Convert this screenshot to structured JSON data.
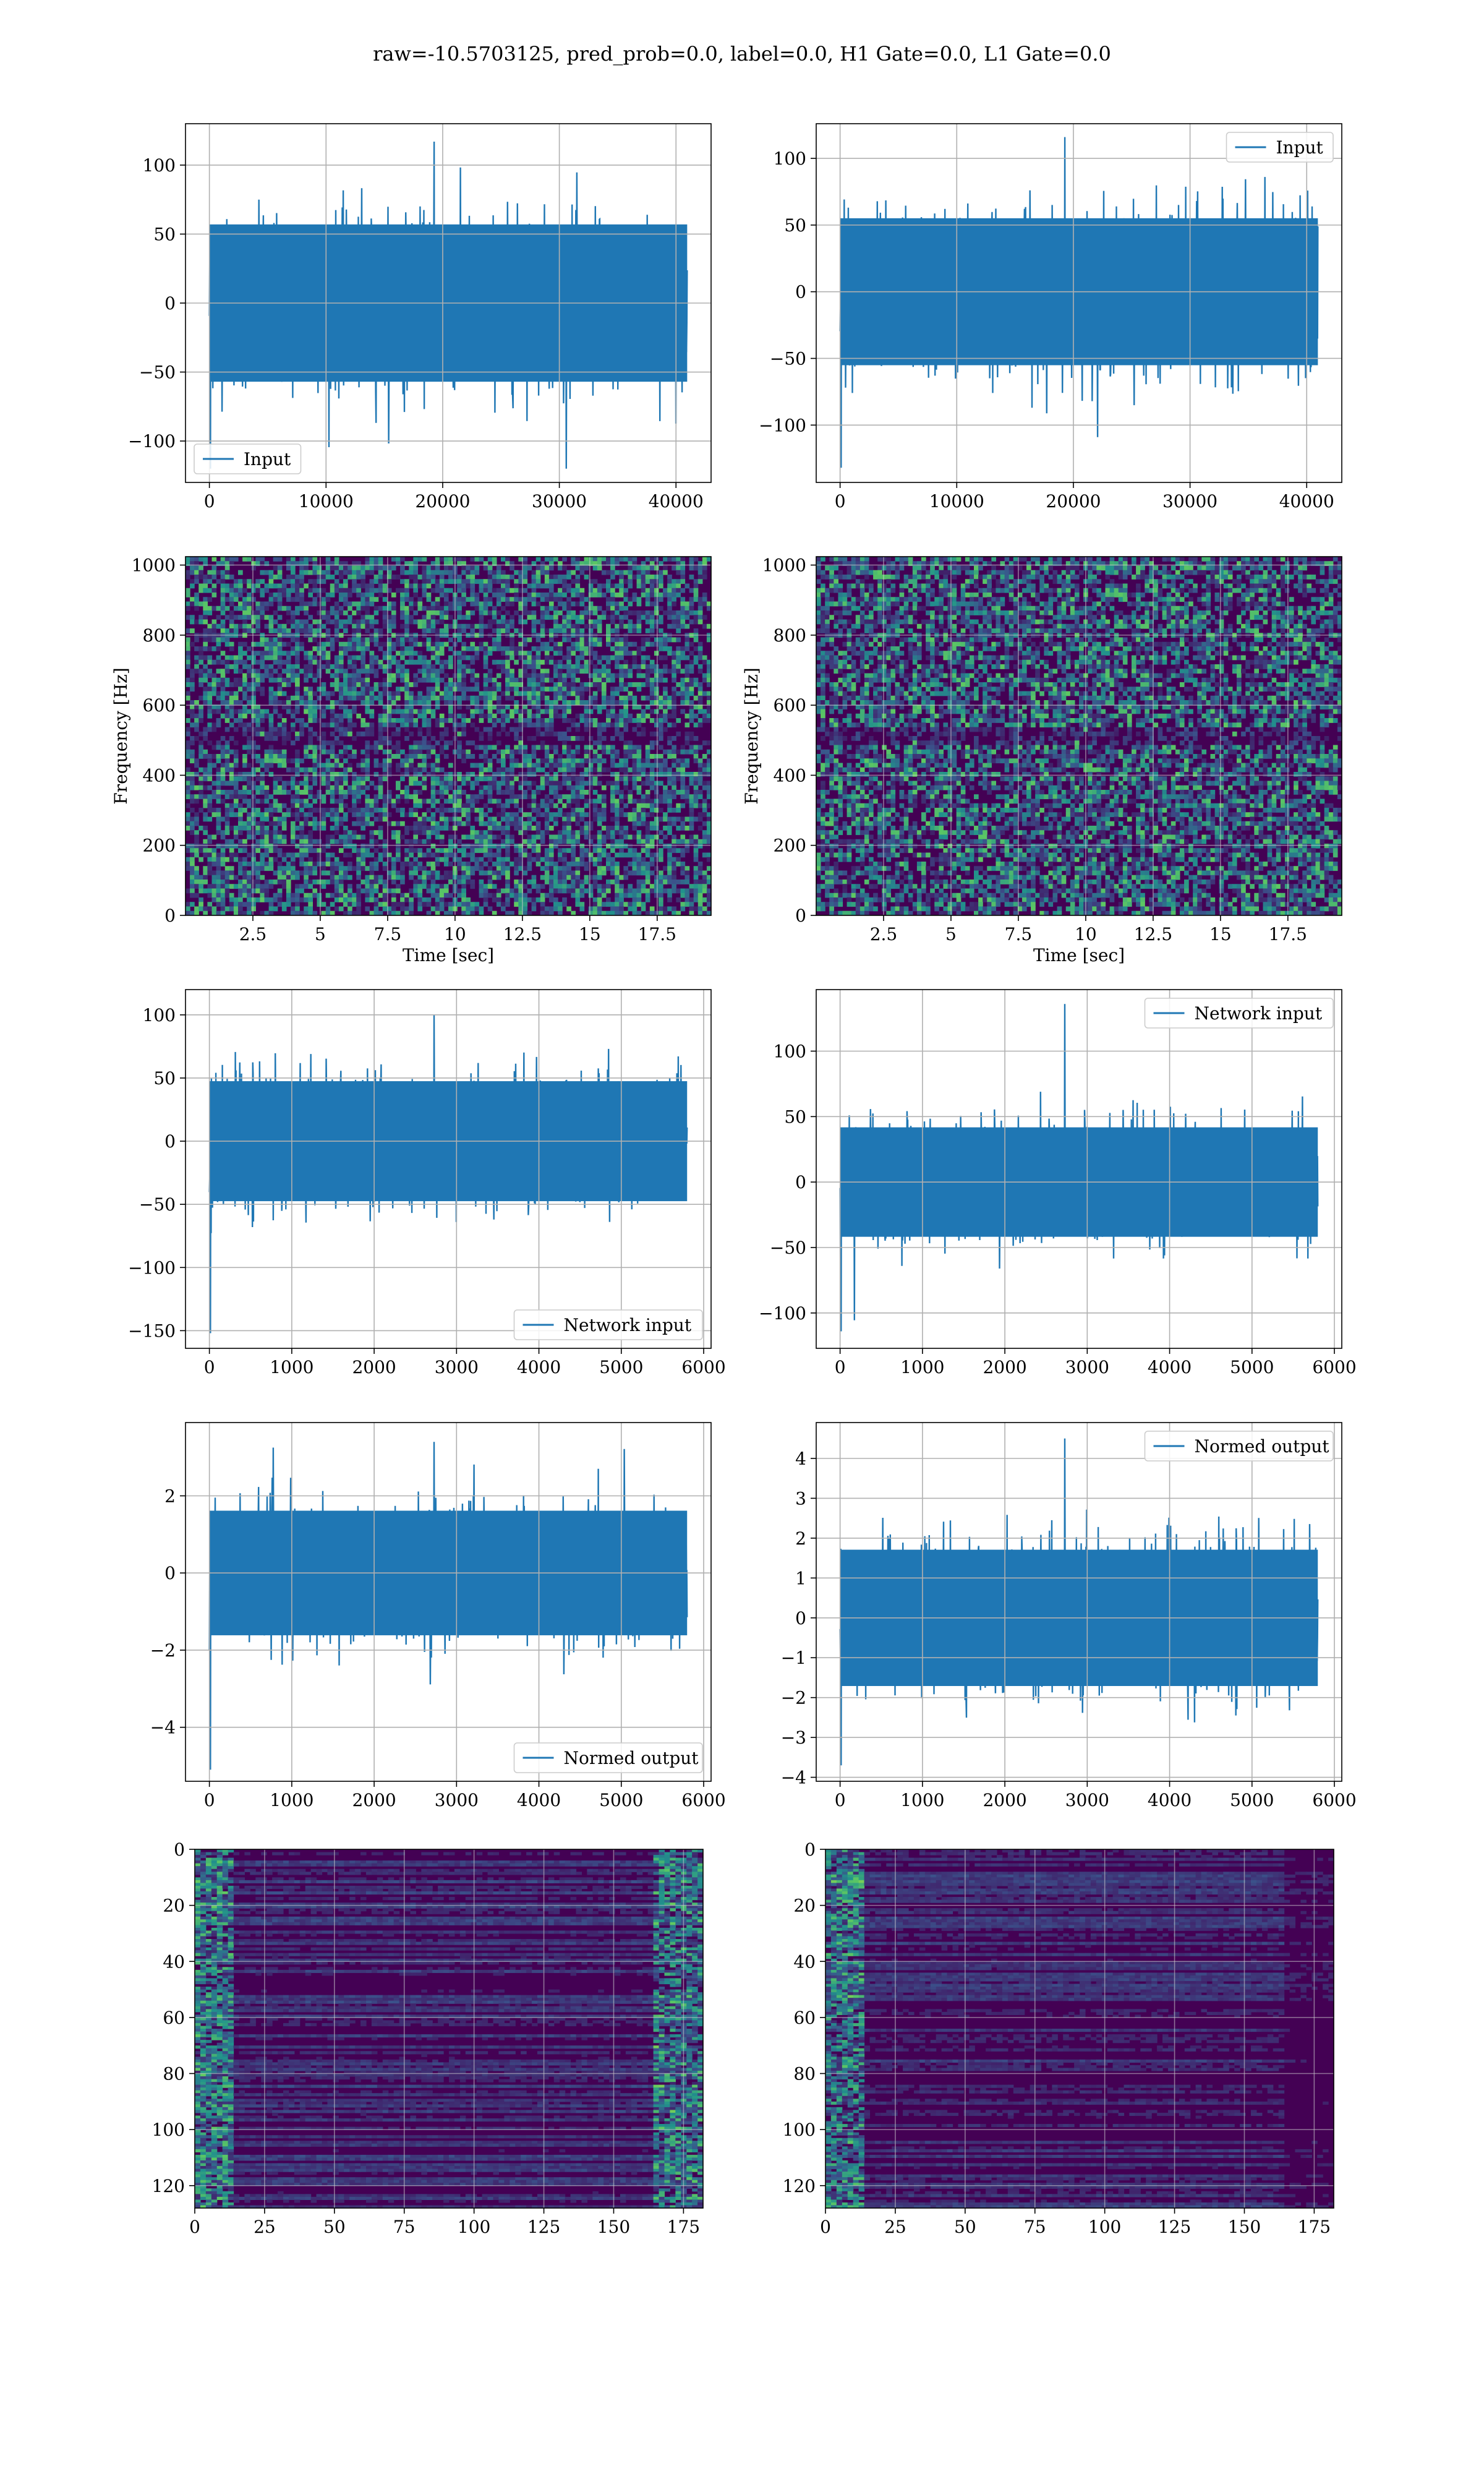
{
  "figure": {
    "suptitle": "raw=-10.5703125, pred_prob=0.0, label=0.0, H1 Gate=0.0, L1 Gate=0.0",
    "colors": {
      "line": "#1f77b4",
      "grid": "#b0b0b0",
      "heat_low": "#440154",
      "heat_mid": "#21918c",
      "heat_high": "#fde725"
    }
  },
  "chart_data": [
    {
      "id": "input-left",
      "type": "line",
      "title": "",
      "xlabel": "",
      "ylabel": "",
      "legend": {
        "label": "Input",
        "loc": "lower-left"
      },
      "series": [
        {
          "name": "Input",
          "length": 40960,
          "mean": 0,
          "std": 30,
          "min": -120,
          "max": 117
        }
      ],
      "xlim": [
        -2048,
        43008
      ],
      "ylim": [
        -130,
        130
      ],
      "xticks": [
        0,
        10000,
        20000,
        30000,
        40000
      ],
      "yticks": [
        -100,
        -50,
        0,
        50,
        100
      ],
      "grid": true
    },
    {
      "id": "input-right",
      "type": "line",
      "title": "",
      "xlabel": "",
      "ylabel": "",
      "legend": {
        "label": "Input",
        "loc": "upper-right"
      },
      "series": [
        {
          "name": "Input",
          "length": 40960,
          "mean": 0,
          "std": 29,
          "min": -132,
          "max": 116
        }
      ],
      "xlim": [
        -2048,
        43008
      ],
      "ylim": [
        -143,
        126
      ],
      "xticks": [
        0,
        10000,
        20000,
        30000,
        40000
      ],
      "yticks": [
        -100,
        -50,
        0,
        50,
        100
      ],
      "grid": true
    },
    {
      "id": "spectrogram-left",
      "type": "heatmap",
      "title": "",
      "xlabel": "Time [sec]",
      "ylabel": "Frequency [Hz]",
      "xlim": [
        0,
        19.5
      ],
      "ylim": [
        0,
        1024
      ],
      "xticks": [
        2.5,
        5.0,
        7.5,
        10.0,
        12.5,
        15.0,
        17.5
      ],
      "yticks": [
        0,
        200,
        400,
        600,
        800,
        1000
      ],
      "colormap": "viridis",
      "dark_band_hz": 512,
      "grid": true
    },
    {
      "id": "spectrogram-right",
      "type": "heatmap",
      "title": "",
      "xlabel": "Time [sec]",
      "ylabel": "Frequency [Hz]",
      "xlim": [
        0,
        19.5
      ],
      "ylim": [
        0,
        1024
      ],
      "xticks": [
        2.5,
        5.0,
        7.5,
        10.0,
        12.5,
        15.0,
        17.5
      ],
      "yticks": [
        0,
        200,
        400,
        600,
        800,
        1000
      ],
      "colormap": "viridis",
      "dark_band_hz": 512,
      "grid": true
    },
    {
      "id": "network-input-left",
      "type": "line",
      "title": "",
      "xlabel": "",
      "ylabel": "",
      "legend": {
        "label": "Network input",
        "loc": "lower-right"
      },
      "series": [
        {
          "name": "Network input",
          "length": 5800,
          "mean": 0,
          "std": 25,
          "min": -152,
          "max": 100
        }
      ],
      "xlim": [
        -290,
        6090
      ],
      "ylim": [
        -164,
        120
      ],
      "xticks": [
        0,
        1000,
        2000,
        3000,
        4000,
        5000,
        6000
      ],
      "yticks": [
        -150,
        -100,
        -50,
        0,
        50,
        100
      ],
      "grid": true
    },
    {
      "id": "network-input-right",
      "type": "line",
      "title": "",
      "xlabel": "",
      "ylabel": "",
      "legend": {
        "label": "Network input",
        "loc": "upper-right"
      },
      "series": [
        {
          "name": "Network input",
          "length": 5800,
          "mean": 0,
          "std": 22,
          "min": -114,
          "max": 136
        }
      ],
      "xlim": [
        -290,
        6090
      ],
      "ylim": [
        -127,
        147
      ],
      "xticks": [
        0,
        1000,
        2000,
        3000,
        4000,
        5000,
        6000
      ],
      "yticks": [
        -100,
        -50,
        0,
        50,
        100
      ],
      "grid": true
    },
    {
      "id": "normed-output-left",
      "type": "line",
      "title": "",
      "xlabel": "",
      "ylabel": "",
      "legend": {
        "label": "Normed output",
        "loc": "lower-right"
      },
      "series": [
        {
          "name": "Normed output",
          "length": 5800,
          "mean": 0,
          "std": 0.85,
          "min": -5.1,
          "max": 3.4
        }
      ],
      "xlim": [
        -290,
        6090
      ],
      "ylim": [
        -5.4,
        3.9
      ],
      "xticks": [
        0,
        1000,
        2000,
        3000,
        4000,
        5000,
        6000
      ],
      "yticks": [
        -4,
        -2,
        0,
        2
      ],
      "grid": true
    },
    {
      "id": "normed-output-right",
      "type": "line",
      "title": "",
      "xlabel": "",
      "ylabel": "",
      "legend": {
        "label": "Normed output",
        "loc": "upper-right"
      },
      "series": [
        {
          "name": "Normed output",
          "length": 5800,
          "mean": 0,
          "std": 0.9,
          "min": -3.7,
          "max": 4.5
        }
      ],
      "xlim": [
        -290,
        6090
      ],
      "ylim": [
        -4.1,
        4.9
      ],
      "xticks": [
        0,
        1000,
        2000,
        3000,
        4000,
        5000,
        6000
      ],
      "yticks": [
        -4,
        -3,
        -2,
        -1,
        0,
        1,
        2,
        3,
        4
      ],
      "grid": true
    },
    {
      "id": "features-left",
      "type": "heatmap",
      "title": "",
      "xlabel": "",
      "ylabel": "",
      "rows": 128,
      "cols": 182,
      "xlim": [
        0,
        182
      ],
      "ylim": [
        128,
        0
      ],
      "xticks": [
        0,
        25,
        50,
        75,
        100,
        125,
        150,
        175
      ],
      "yticks": [
        0,
        20,
        40,
        60,
        80,
        100,
        120
      ],
      "colormap": "viridis",
      "grid": true
    },
    {
      "id": "features-right",
      "type": "heatmap",
      "title": "",
      "xlabel": "",
      "ylabel": "",
      "rows": 128,
      "cols": 182,
      "xlim": [
        0,
        182
      ],
      "ylim": [
        128,
        0
      ],
      "xticks": [
        0,
        25,
        50,
        75,
        100,
        125,
        150,
        175
      ],
      "yticks": [
        0,
        20,
        40,
        60,
        80,
        100,
        120
      ],
      "colormap": "viridis",
      "grid": true
    }
  ]
}
